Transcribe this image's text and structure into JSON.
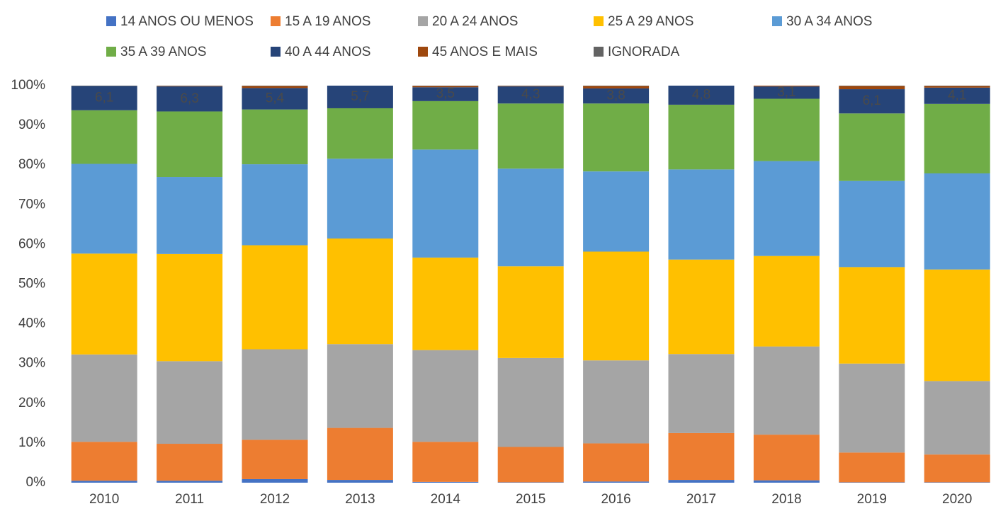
{
  "chart_data": {
    "type": "stacked_bar_percent",
    "categories": [
      "2010",
      "2011",
      "2012",
      "2013",
      "2014",
      "2015",
      "2016",
      "2017",
      "2018",
      "2019",
      "2020"
    ],
    "series": [
      {
        "name": "14 ANOS OU MENOS",
        "color": "#4472c4",
        "values": [
          0.5,
          0.5,
          0.9,
          0.7,
          0.2,
          0.1,
          0.3,
          0.7,
          0.6,
          0.1,
          0.1
        ]
      },
      {
        "name": "15 A 19 ANOS",
        "color": "#ed7d31",
        "values": [
          9.8,
          9.3,
          9.9,
          13.1,
          10.1,
          8.9,
          9.6,
          11.8,
          11.5,
          7.5,
          7.0
        ]
      },
      {
        "name": "20 A 24 ANOS",
        "color": "#a5a5a5",
        "values": [
          22.0,
          20.8,
          22.8,
          21.1,
          23.1,
          22.4,
          20.9,
          19.9,
          22.2,
          22.4,
          18.5
        ]
      },
      {
        "name": "25 A 29 ANOS",
        "color": "#ffc000",
        "values": [
          25.4,
          27.0,
          26.2,
          26.6,
          23.3,
          23.1,
          27.4,
          23.8,
          22.8,
          24.3,
          28.1
        ]
      },
      {
        "name": "30 A 34 ANOS",
        "color": "#5b9bd5",
        "values": [
          22.6,
          19.4,
          20.4,
          20.1,
          27.2,
          24.6,
          20.2,
          22.7,
          23.9,
          21.7,
          24.2
        ]
      },
      {
        "name": "35 A 39 ANOS",
        "color": "#70ad47",
        "values": [
          13.5,
          16.5,
          13.8,
          12.7,
          12.2,
          16.4,
          17.1,
          16.3,
          15.7,
          17.0,
          17.5
        ]
      },
      {
        "name": "40 A 44 ANOS",
        "color": "#264478",
        "values": [
          6.1,
          6.3,
          5.4,
          5.7,
          3.5,
          4.3,
          3.8,
          4.8,
          3.1,
          6.1,
          4.1
        ],
        "value_labels": [
          "6,1",
          "6,3",
          "5,4",
          "5,7",
          "3,5",
          "4,3",
          "3,8",
          "4,8",
          "3,1",
          "6,1",
          "4,1"
        ]
      },
      {
        "name": "45 ANOS E MAIS",
        "color": "#9e480e",
        "values": [
          0,
          0.1,
          0.5,
          0,
          0.3,
          0.1,
          0.6,
          0,
          0.2,
          0.8,
          0.4
        ]
      },
      {
        "name": "IGNORADA",
        "color": "#636363",
        "values": [
          0.1,
          0.1,
          0.1,
          0,
          0.1,
          0.1,
          0.1,
          0,
          0,
          0.1,
          0.1
        ]
      }
    ],
    "ylim": [
      0,
      100
    ],
    "yticks": [
      {
        "value": 0,
        "label": "0%"
      },
      {
        "value": 10,
        "label": "10%"
      },
      {
        "value": 20,
        "label": "20%"
      },
      {
        "value": 30,
        "label": "30%"
      },
      {
        "value": 40,
        "label": "40%"
      },
      {
        "value": 50,
        "label": "50%"
      },
      {
        "value": 60,
        "label": "60%"
      },
      {
        "value": 70,
        "label": "70%"
      },
      {
        "value": 80,
        "label": "80%"
      },
      {
        "value": 90,
        "label": "90%"
      },
      {
        "value": 100,
        "label": "100%"
      }
    ],
    "grid": false,
    "legend": "top"
  }
}
